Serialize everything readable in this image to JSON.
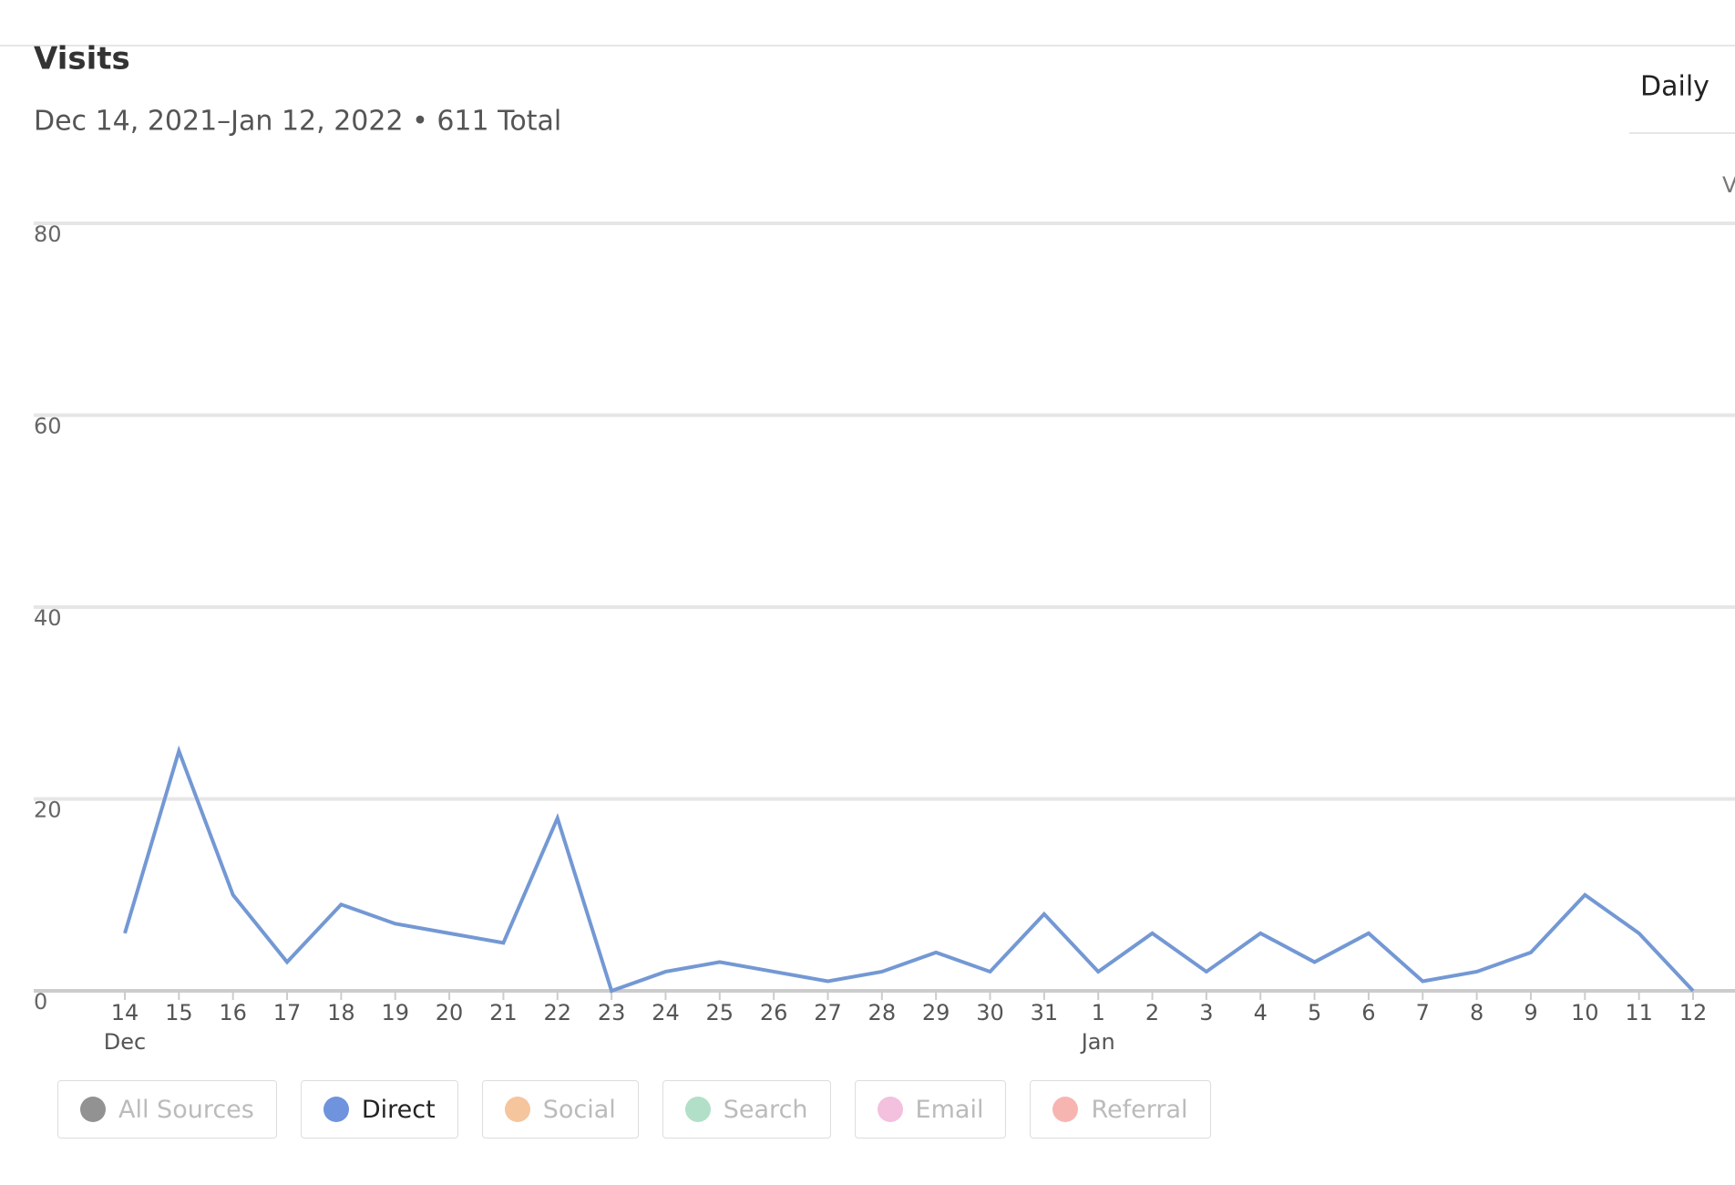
{
  "chart_data": {
    "type": "line",
    "title": "Visits",
    "subtitle": "Dec 14, 2021–Jan 12, 2022 • 611 Total",
    "period": "Daily",
    "clipped_label": "V",
    "categories": [
      "14",
      "15",
      "16",
      "17",
      "18",
      "19",
      "20",
      "21",
      "22",
      "23",
      "24",
      "25",
      "26",
      "27",
      "28",
      "29",
      "30",
      "31",
      "1",
      "2",
      "3",
      "4",
      "5",
      "6",
      "7",
      "8",
      "9",
      "10",
      "11",
      "12"
    ],
    "months": [
      "Dec",
      null,
      null,
      null,
      null,
      null,
      null,
      null,
      null,
      null,
      null,
      null,
      null,
      null,
      null,
      null,
      null,
      null,
      "Jan",
      null,
      null,
      null,
      null,
      null,
      null,
      null,
      null,
      null,
      null,
      null
    ],
    "series": [
      {
        "name": "Direct",
        "color": "#7398d4",
        "values": [
          6,
          25,
          10,
          3,
          9,
          7,
          6,
          5,
          18,
          0,
          2,
          3,
          2,
          1,
          2,
          4,
          2,
          8,
          2,
          6,
          2,
          6,
          3,
          6,
          1,
          2,
          4,
          10,
          6,
          0
        ]
      }
    ],
    "ylim": [
      0,
      80
    ],
    "yticks": [
      0,
      20,
      40,
      60,
      80
    ],
    "grid": true,
    "sources": [
      {
        "name": "All Sources",
        "color": "#7f7f7f"
      },
      {
        "name": "Social",
        "color": "#f3bb8c"
      },
      {
        "name": "Search",
        "color": "#a5d9be"
      },
      {
        "name": "Email",
        "color": "#f1b5d8"
      },
      {
        "name": "Referral",
        "color": "#f6a8a4"
      }
    ],
    "active_color": "#6f93dc"
  }
}
